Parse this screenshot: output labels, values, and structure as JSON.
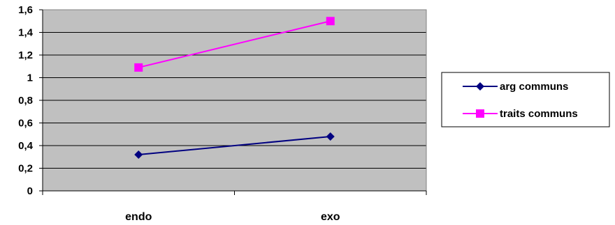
{
  "chart_data": {
    "type": "line",
    "categories": [
      "endo",
      "exo"
    ],
    "series": [
      {
        "name": "arg communs",
        "values": [
          0.32,
          0.48
        ],
        "color": "#000080",
        "marker": "diamond"
      },
      {
        "name": "traits communs",
        "values": [
          1.09,
          1.5
        ],
        "color": "#ff00ff",
        "marker": "square"
      }
    ],
    "ylim": [
      0,
      1.6
    ],
    "yticks": [
      "0",
      "0,2",
      "0,4",
      "0,6",
      "0,8",
      "1",
      "1,2",
      "1,4",
      "1,6"
    ],
    "grid": true,
    "plot_background": "#c0c0c0",
    "legend_position": "right"
  }
}
